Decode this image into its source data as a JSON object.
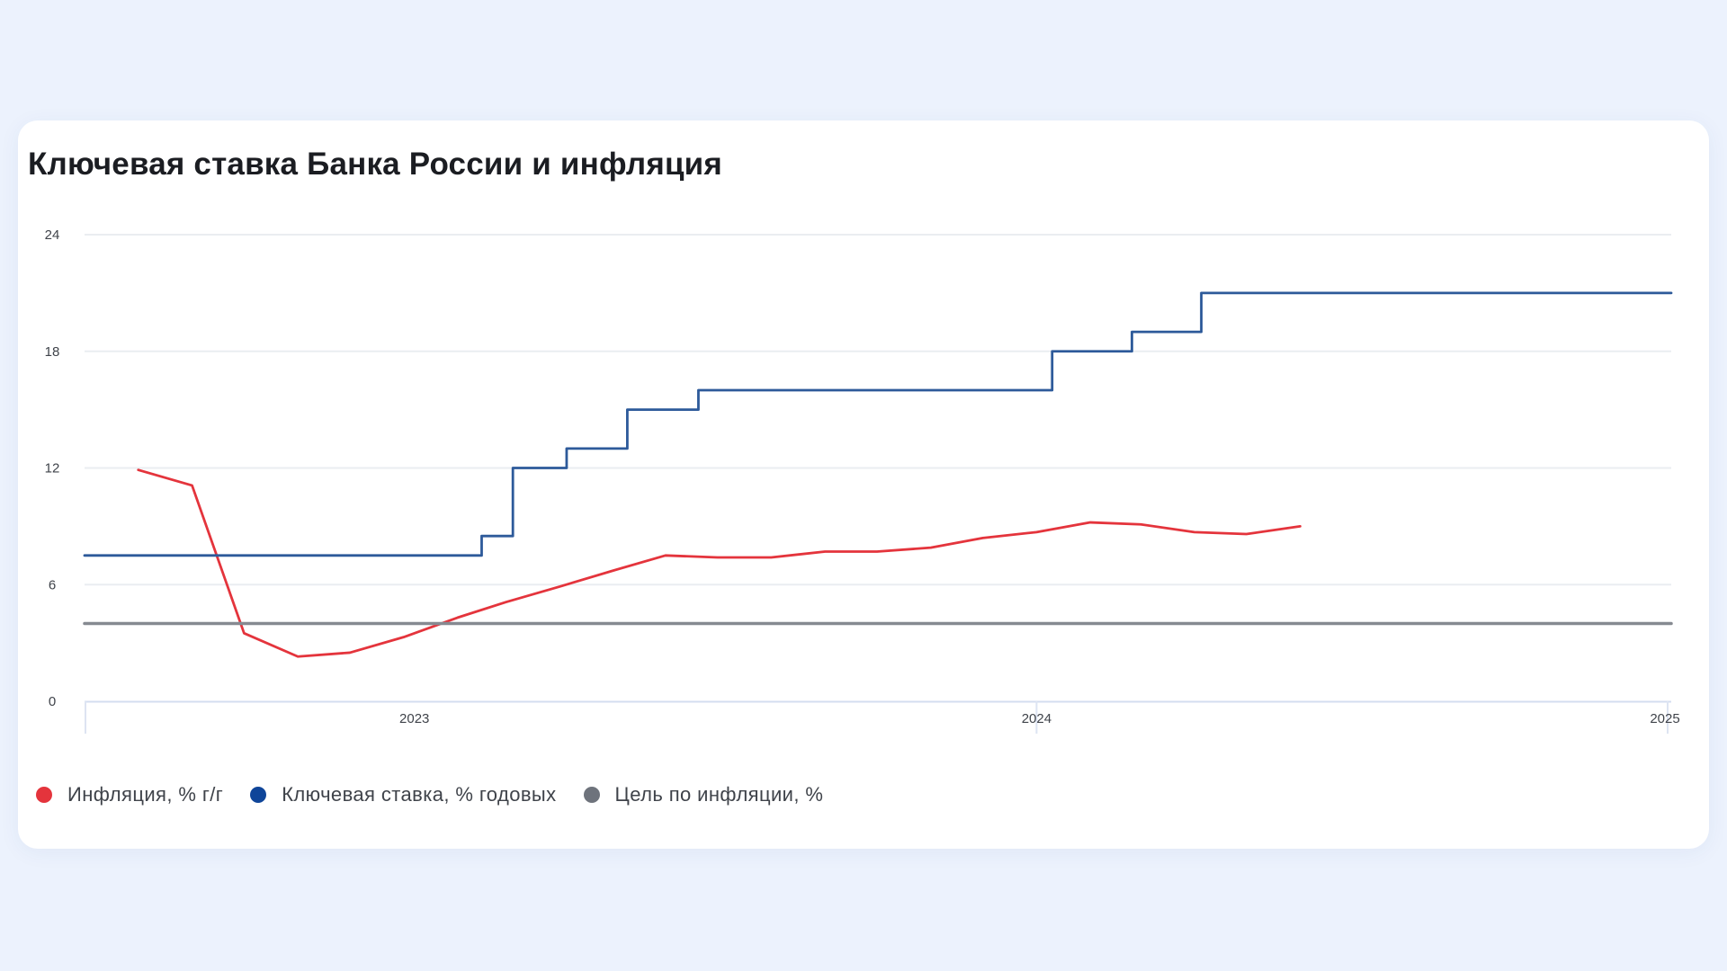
{
  "card": {
    "title": "Ключевая ставка Банка России и инфляция"
  },
  "chart_data": {
    "type": "line",
    "title": "Ключевая ставка Банка России и инфляция",
    "xlabel": "",
    "ylabel": "",
    "ylim": [
      0,
      24
    ],
    "xlim": [
      "2022-07-01",
      "2025-01-01"
    ],
    "y_ticks": [
      "0",
      "6",
      "12",
      "18",
      "24"
    ],
    "x_ticks": [
      {
        "label": "2023",
        "x": "2023-01-01"
      },
      {
        "label": "2024",
        "x": "2024-01-01"
      },
      {
        "label": "2025",
        "x": "2025-01-01"
      }
    ],
    "grid": true,
    "legend_position": "bottom-left",
    "series": [
      {
        "name": "Инфляция, % г/г",
        "color": "#e4343c",
        "style": "line",
        "points": [
          [
            "2022-08-01",
            11.9
          ],
          [
            "2022-09-01",
            11.1
          ],
          [
            "2022-10-01",
            3.5
          ],
          [
            "2022-11-01",
            2.3
          ],
          [
            "2022-12-01",
            2.5
          ],
          [
            "2023-01-01",
            3.3
          ],
          [
            "2023-02-01",
            4.3
          ],
          [
            "2023-03-01",
            5.1
          ],
          [
            "2023-04-01",
            5.9
          ],
          [
            "2023-05-01",
            6.7
          ],
          [
            "2023-06-01",
            7.5
          ],
          [
            "2023-07-01",
            7.4
          ],
          [
            "2023-08-01",
            7.4
          ],
          [
            "2023-09-01",
            7.7
          ],
          [
            "2023-10-01",
            7.7
          ],
          [
            "2023-11-01",
            7.9
          ],
          [
            "2023-12-01",
            8.4
          ],
          [
            "2024-01-01",
            8.7
          ],
          [
            "2024-02-01",
            9.2
          ],
          [
            "2024-03-01",
            9.1
          ],
          [
            "2024-04-01",
            8.7
          ],
          [
            "2024-05-01",
            8.6
          ],
          [
            "2024-06-01",
            9.0
          ]
        ]
      },
      {
        "name": "Ключевая ставка, % годовых",
        "color": "#2d5a9a",
        "style": "step",
        "points": [
          [
            "2022-07-01",
            7.5
          ],
          [
            "2023-02-15",
            8.5
          ],
          [
            "2023-03-05",
            12
          ],
          [
            "2023-04-05",
            13
          ],
          [
            "2023-05-10",
            15
          ],
          [
            "2023-06-20",
            16
          ],
          [
            "2024-01-10",
            18
          ],
          [
            "2024-02-25",
            19
          ],
          [
            "2024-04-05",
            21
          ],
          [
            "2025-01-01",
            21
          ]
        ]
      },
      {
        "name": "Цель по инфляции, %",
        "color": "#868a91",
        "style": "line",
        "points": [
          [
            "2022-07-01",
            4
          ],
          [
            "2025-01-01",
            4
          ]
        ]
      }
    ]
  },
  "legend": {
    "items": [
      {
        "label": "Инфляция, % г/г",
        "color": "#e4343c"
      },
      {
        "label": "Ключевая ставка, % годовых",
        "color": "#0f4599"
      },
      {
        "label": "Цель по инфляции, %",
        "color": "#6e737c"
      }
    ]
  }
}
